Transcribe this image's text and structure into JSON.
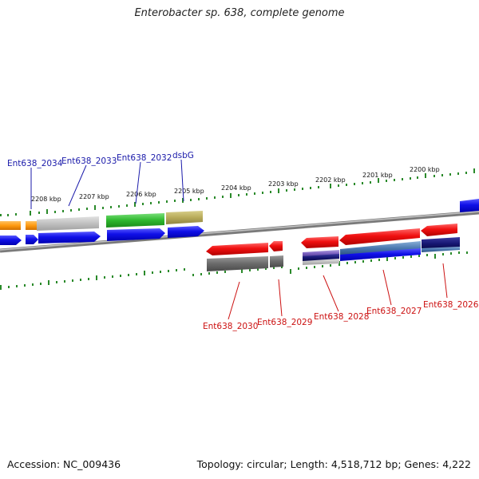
{
  "title": "Enterobacter sp. 638, complete genome",
  "footer": {
    "accession": "Accession: NC_009436",
    "topology": "Topology: circular; Length: 4,518,712 bp; Genes: 4,222"
  },
  "scale_labels": [
    "2208 kbp",
    "2207 kbp",
    "2206 kbp",
    "2205 kbp",
    "2204 kbp",
    "2203 kbp",
    "2202 kbp",
    "2201 kbp",
    "2200 kbp"
  ],
  "gene_labels_top": [
    "Ent638_2034",
    "Ent638_2033",
    "Ent638_2032",
    "dsbG"
  ],
  "gene_labels_bottom": [
    "Ent638_2030",
    "Ent638_2029",
    "Ent638_2028",
    "Ent638_2027",
    "Ent638_2026"
  ],
  "colors": {
    "forward_label": "#1a1aaa",
    "reverse_label": "#cc1111",
    "tick": "#2a8a2a",
    "backbone": "#8a8a8a"
  }
}
